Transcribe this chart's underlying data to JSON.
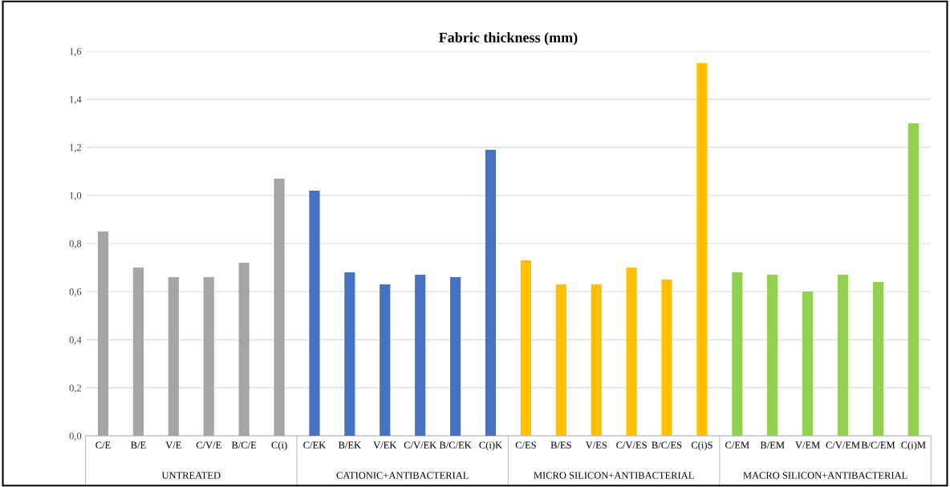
{
  "chart_data": {
    "type": "bar",
    "title": "Fabric thickness (mm)",
    "categories": [
      "C/E",
      "B/E",
      "V/E",
      "C/V/E",
      "B/C/E",
      "C(i)",
      "C/EK",
      "B/EK",
      "V/EK",
      "C/V/EK",
      "B/C/EK",
      "C(i)K",
      "C/ES",
      "B/ES",
      "V/ES",
      "C/V/ES",
      "B/C/ES",
      "C(i)S",
      "C/EM",
      "B/EM",
      "V/EM",
      "C/V/EM",
      "B/C/EM",
      "C(i)M"
    ],
    "values": [
      0.85,
      0.7,
      0.66,
      0.66,
      0.72,
      1.07,
      1.02,
      0.68,
      0.63,
      0.67,
      0.66,
      1.19,
      0.73,
      0.63,
      0.63,
      0.7,
      0.65,
      1.55,
      0.68,
      0.67,
      0.6,
      0.67,
      0.64,
      1.3
    ],
    "colors": [
      "#a5a5a5",
      "#a5a5a5",
      "#a5a5a5",
      "#a5a5a5",
      "#a5a5a5",
      "#a5a5a5",
      "#4472c4",
      "#4472c4",
      "#4472c4",
      "#4472c4",
      "#4472c4",
      "#4472c4",
      "#ffc000",
      "#ffc000",
      "#ffc000",
      "#ffc000",
      "#ffc000",
      "#ffc000",
      "#92d050",
      "#92d050",
      "#92d050",
      "#92d050",
      "#92d050",
      "#92d050"
    ],
    "annotations": [
      "UNTREATED",
      "CATIONIC+ANTIBACTERIAL",
      "MICRO SILICON+ANTIBACTERIAL",
      "MACRO SILICON+ANTIBACTERIAL"
    ],
    "ylim": [
      0,
      1.6
    ],
    "yticks": [
      {
        "value": 0,
        "label": "0,0"
      },
      {
        "value": 0.2,
        "label": "0,2"
      },
      {
        "value": 0.4,
        "label": "0,4"
      },
      {
        "value": 0.6,
        "label": "0,6"
      },
      {
        "value": 0.8,
        "label": "0,8"
      },
      {
        "value": 1.0,
        "label": "1,0"
      },
      {
        "value": 1.2,
        "label": "1,2"
      },
      {
        "value": 1.4,
        "label": "1,4"
      },
      {
        "value": 1.6,
        "label": "1,6"
      }
    ],
    "grid": "y"
  }
}
